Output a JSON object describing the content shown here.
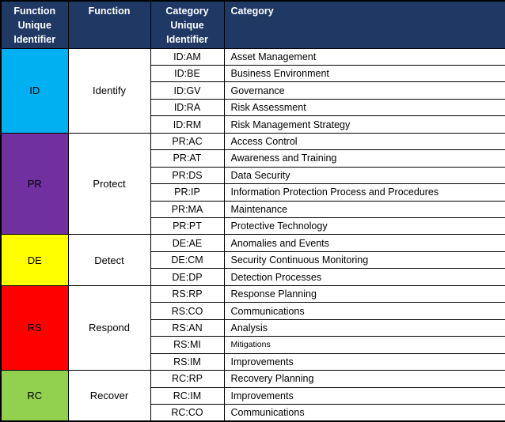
{
  "table": {
    "headers": [
      "Function Unique Identifier",
      "Function",
      "Category Unique Identifier",
      "Category"
    ],
    "header_bg": "#1F3864",
    "header_text_color": "#FFFFFF",
    "border_color": "#000000",
    "sections": [
      {
        "id": "ID",
        "name": "Identify",
        "color": "#00B0F0",
        "rows": [
          {
            "code": "ID:AM",
            "name": "Asset Management"
          },
          {
            "code": "ID:BE",
            "name": "Business Environment"
          },
          {
            "code": "ID:GV",
            "name": "Governance"
          },
          {
            "code": "ID:RA",
            "name": "Risk Assessment"
          },
          {
            "code": "ID:RM",
            "name": "Risk Management Strategy"
          }
        ]
      },
      {
        "id": "PR",
        "name": "Protect",
        "color": "#7030A0",
        "rows": [
          {
            "code": "PR:AC",
            "name": "Access Control"
          },
          {
            "code": "PR:AT",
            "name": "Awareness and Training"
          },
          {
            "code": "PR:DS",
            "name": "Data Security"
          },
          {
            "code": "PR:IP",
            "name": "Information Protection Process and Procedures"
          },
          {
            "code": "PR:MA",
            "name": "Maintenance"
          },
          {
            "code": "PR:PT",
            "name": "Protective Technology"
          }
        ]
      },
      {
        "id": "DE",
        "name": "Detect",
        "color": "#FFFF00",
        "rows": [
          {
            "code": "DE:AE",
            "name": "Anomalies and Events"
          },
          {
            "code": "DE:CM",
            "name": "Security Continuous Monitoring"
          },
          {
            "code": "DE:DP",
            "name": "Detection Processes"
          }
        ]
      },
      {
        "id": "RS",
        "name": "Respond",
        "color": "#FF0000",
        "rows": [
          {
            "code": "RS:RP",
            "name": "Response Planning"
          },
          {
            "code": "RS:CO",
            "name": "Communications"
          },
          {
            "code": "RS:AN",
            "name": "Analysis"
          },
          {
            "code": "RS:MI",
            "name": "Mitigations",
            "small": true
          },
          {
            "code": "RS:IM",
            "name": "Improvements"
          }
        ]
      },
      {
        "id": "RC",
        "name": "Recover",
        "color": "#92D050",
        "rows": [
          {
            "code": "RC:RP",
            "name": "Recovery Planning"
          },
          {
            "code": "RC:IM",
            "name": "Improvements"
          },
          {
            "code": "RC:CO",
            "name": "Communications"
          }
        ]
      }
    ]
  }
}
